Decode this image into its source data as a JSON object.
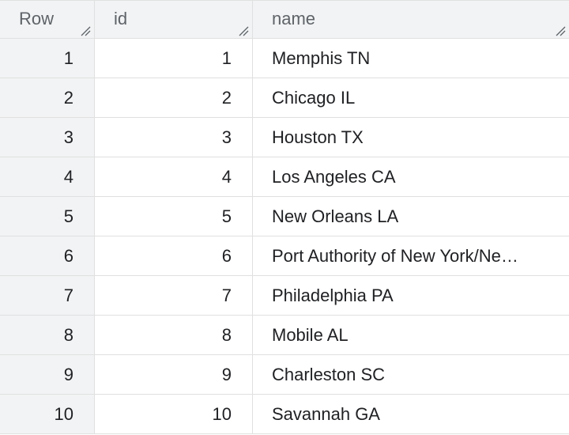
{
  "table": {
    "columns": [
      {
        "label": "Row",
        "resize_icon": "resize-grip-icon"
      },
      {
        "label": "id",
        "resize_icon": "resize-grip-icon"
      },
      {
        "label": "name",
        "resize_icon": "resize-grip-icon"
      }
    ],
    "rows": [
      {
        "row": "1",
        "id": "1",
        "name": "Memphis TN"
      },
      {
        "row": "2",
        "id": "2",
        "name": "Chicago IL"
      },
      {
        "row": "3",
        "id": "3",
        "name": "Houston TX"
      },
      {
        "row": "4",
        "id": "4",
        "name": "Los Angeles CA"
      },
      {
        "row": "5",
        "id": "5",
        "name": "New Orleans LA"
      },
      {
        "row": "6",
        "id": "6",
        "name": "Port Authority of New York/Ne…"
      },
      {
        "row": "7",
        "id": "7",
        "name": "Philadelphia PA"
      },
      {
        "row": "8",
        "id": "8",
        "name": "Mobile AL"
      },
      {
        "row": "9",
        "id": "9",
        "name": "Charleston SC"
      },
      {
        "row": "10",
        "id": "10",
        "name": "Savannah GA"
      }
    ]
  },
  "colors": {
    "header_background": "#f1f3f4",
    "row_number_background": "#f1f3f4",
    "grid_line": "#e0e0e0",
    "header_text": "#5f6368",
    "cell_text": "#202124"
  }
}
